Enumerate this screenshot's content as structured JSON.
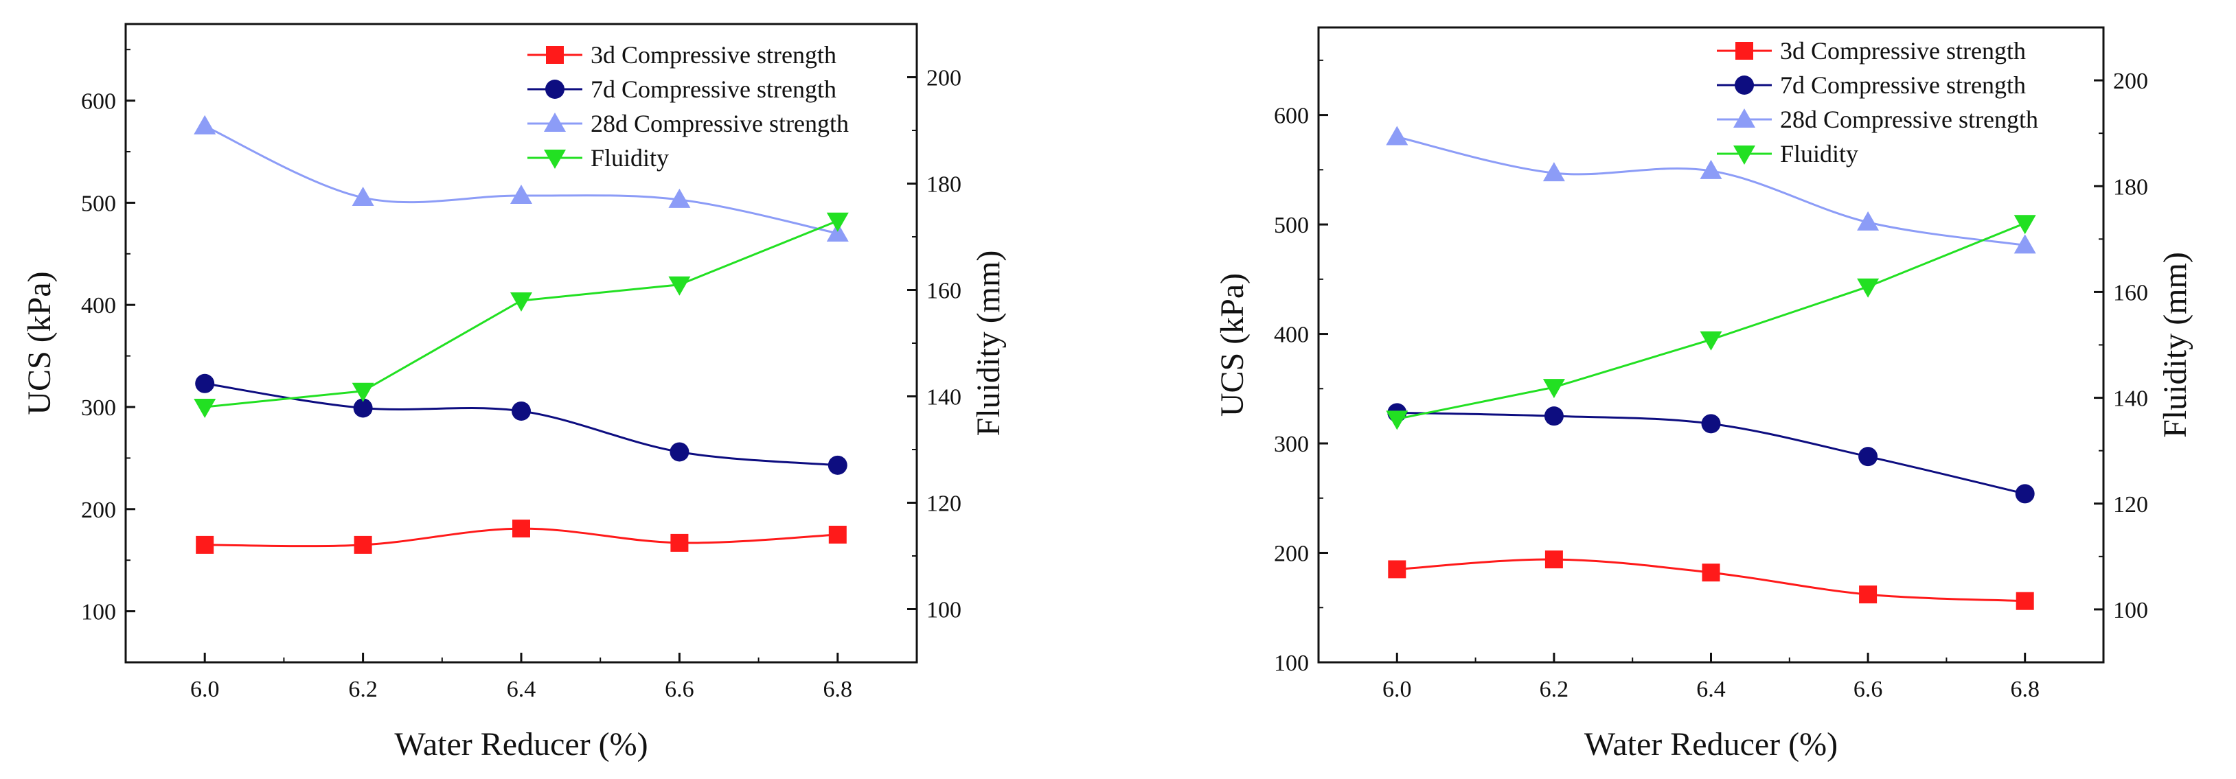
{
  "chart_data": [
    {
      "type": "line",
      "xlabel": "Water Reducer (%)",
      "ylabel": "UCS (kPa)",
      "y2label": "Fluidity (mm)",
      "xlim": [
        5.9,
        6.9
      ],
      "ylim": [
        50,
        675
      ],
      "y2lim": [
        90,
        210
      ],
      "x_ticks": [
        "6.0",
        "6.2",
        "6.4",
        "6.6",
        "6.8"
      ],
      "y_ticks": [
        "100",
        "200",
        "300",
        "400",
        "500",
        "600"
      ],
      "y2_ticks": [
        "100",
        "120",
        "140",
        "160",
        "180",
        "200"
      ],
      "x": [
        6.0,
        6.2,
        6.4,
        6.6,
        6.8
      ],
      "series": [
        {
          "name": "3d Compressive strength",
          "axis": "left",
          "marker": "square",
          "color": "#ff1a1a",
          "smooth": true,
          "values": [
            165,
            165,
            181,
            167,
            175
          ]
        },
        {
          "name": "7d Compressive strength",
          "axis": "left",
          "marker": "circle",
          "color": "#0d0d80",
          "smooth": true,
          "values": [
            323,
            299,
            296,
            256,
            243
          ]
        },
        {
          "name": "28d Compressive strength",
          "axis": "left",
          "marker": "triangle-up",
          "color": "#8c9cf7",
          "smooth": true,
          "values": [
            575,
            505,
            507,
            503,
            470
          ]
        },
        {
          "name": "Fluidity",
          "axis": "right",
          "marker": "triangle-down",
          "color": "#22e022",
          "smooth": false,
          "values": [
            138,
            141,
            158,
            161,
            173
          ]
        }
      ],
      "legend_position": "top-right"
    },
    {
      "type": "line",
      "xlabel": "Water Reducer (%)",
      "ylabel": "UCS (kPa)",
      "y2label": "Fluidity (mm)",
      "xlim": [
        5.9,
        6.9
      ],
      "ylim": [
        100,
        680
      ],
      "y2lim": [
        90,
        210
      ],
      "x_ticks": [
        "6.0",
        "6.2",
        "6.4",
        "6.6",
        "6.8"
      ],
      "y_ticks": [
        "100",
        "200",
        "300",
        "400",
        "500",
        "600"
      ],
      "y2_ticks": [
        "100",
        "120",
        "140",
        "160",
        "180",
        "200"
      ],
      "x": [
        6.0,
        6.2,
        6.4,
        6.6,
        6.8
      ],
      "series": [
        {
          "name": "3d Compressive strength",
          "axis": "left",
          "marker": "square",
          "color": "#ff1a1a",
          "smooth": true,
          "values": [
            185,
            194,
            182,
            162,
            156
          ]
        },
        {
          "name": "7d Compressive strength",
          "axis": "left",
          "marker": "circle",
          "color": "#0d0d80",
          "smooth": true,
          "values": [
            328,
            325,
            318,
            288,
            254
          ]
        },
        {
          "name": "28d Compressive strength",
          "axis": "left",
          "marker": "triangle-up",
          "color": "#8c9cf7",
          "smooth": true,
          "values": [
            580,
            547,
            549,
            502,
            481
          ]
        },
        {
          "name": "Fluidity",
          "axis": "right",
          "marker": "triangle-down",
          "color": "#22e022",
          "smooth": false,
          "values": [
            136,
            142,
            151,
            161,
            173
          ]
        }
      ],
      "legend_position": "top-right"
    }
  ]
}
